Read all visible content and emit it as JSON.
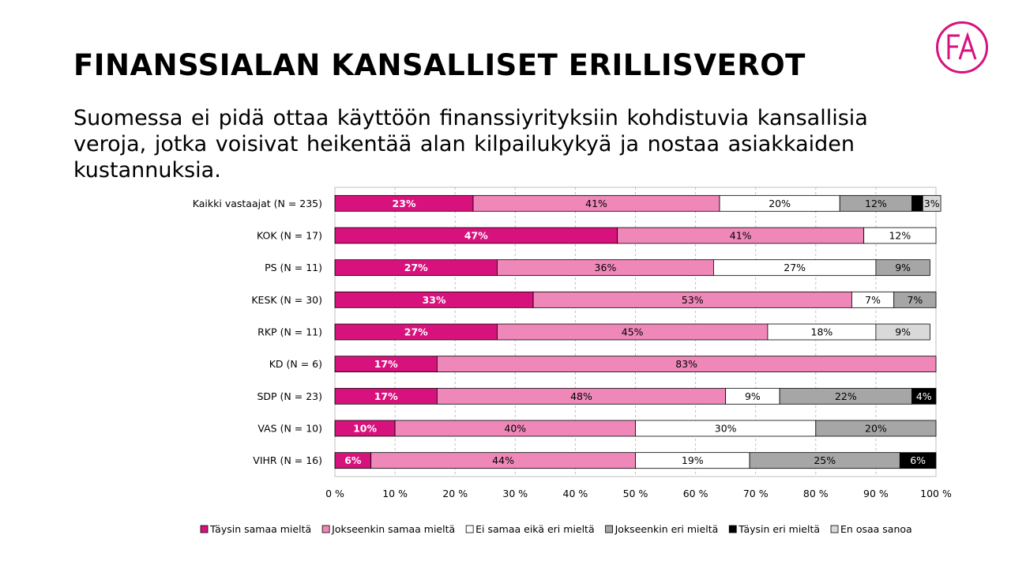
{
  "header": {
    "title": "FINANSSIALAN KANSALLISET ERILLISVEROT",
    "subtitle": "Suomessa ei pidä ottaa käyttöön finanssiyrityksiin kohdistuvia kansallisia veroja, jotka voisivat heikentää alan kilpailukykyä ja nostaa asiakkaiden kustannuksia.",
    "logo_text": "FA",
    "logo_color": "#d8127d"
  },
  "chart_data": {
    "type": "bar",
    "orientation": "horizontal",
    "stacked": "100%",
    "categories": [
      "Kaikki vastaajat (N = 235)",
      "KOK (N = 17)",
      "PS (N = 11)",
      "KESK (N = 30)",
      "RKP (N = 11)",
      "KD (N = 6)",
      "SDP (N = 23)",
      "VAS (N = 10)",
      "VIHR (N = 16)"
    ],
    "series": [
      {
        "name": "Täysin samaa mieltä",
        "color": "#d8127d",
        "label_color": "#ffffff",
        "label_bold": true,
        "values": [
          23,
          47,
          27,
          33,
          27,
          17,
          17,
          10,
          6
        ]
      },
      {
        "name": "Jokseenkin samaa mieltä",
        "color": "#ef88b8",
        "label_color": "#000000",
        "label_bold": false,
        "values": [
          41,
          41,
          36,
          53,
          45,
          83,
          48,
          40,
          44
        ]
      },
      {
        "name": "Ei samaa eikä eri mieltä",
        "color": "#ffffff",
        "label_color": "#000000",
        "label_bold": false,
        "values": [
          20,
          12,
          27,
          7,
          18,
          0,
          9,
          30,
          19
        ]
      },
      {
        "name": "Jokseenkin eri mieltä",
        "color": "#a6a6a6",
        "label_color": "#000000",
        "label_bold": false,
        "values": [
          12,
          0,
          9,
          7,
          0,
          0,
          22,
          20,
          25
        ]
      },
      {
        "name": "Täysin eri mieltä",
        "color": "#000000",
        "label_color": "#ffffff",
        "label_bold": false,
        "values": [
          1.8,
          0,
          0,
          0,
          0,
          0,
          4,
          0,
          6
        ]
      },
      {
        "name": "En osaa sanoa",
        "color": "#d9d9d9",
        "label_color": "#000000",
        "label_bold": false,
        "values": [
          3,
          0,
          0,
          0,
          9,
          0,
          0,
          0,
          0
        ]
      }
    ],
    "data_labels": [
      [
        "23%",
        "41%",
        "20%",
        "12%",
        "",
        "3%"
      ],
      [
        "47%",
        "41%",
        "12%",
        "",
        "",
        ""
      ],
      [
        "27%",
        "36%",
        "27%",
        "9%",
        "",
        ""
      ],
      [
        "33%",
        "53%",
        "7%",
        "7%",
        "",
        ""
      ],
      [
        "27%",
        "45%",
        "18%",
        "",
        "",
        "9%"
      ],
      [
        "17%",
        "83%",
        "",
        "",
        "",
        ""
      ],
      [
        "17%",
        "48%",
        "9%",
        "22%",
        "4%",
        ""
      ],
      [
        "10%",
        "40%",
        "30%",
        "20%",
        "",
        ""
      ],
      [
        "6%",
        "44%",
        "19%",
        "25%",
        "6%",
        ""
      ]
    ],
    "x_ticks": [
      "0 %",
      "10 %",
      "20 %",
      "30 %",
      "40 %",
      "50 %",
      "60 %",
      "70 %",
      "80 %",
      "90 %",
      "100 %"
    ],
    "xlim": [
      0,
      100
    ],
    "grid": "vertical dashed",
    "legend_position": "bottom"
  }
}
